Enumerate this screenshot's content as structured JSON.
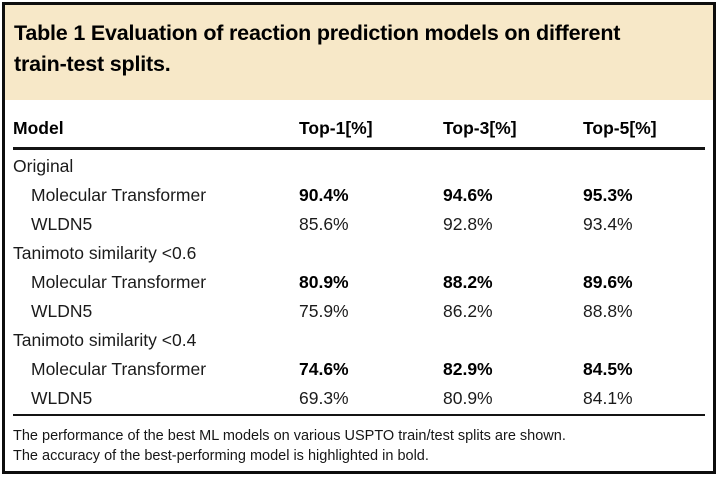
{
  "table": {
    "title_lines": [
      "Table 1 Evaluation of reaction prediction models on different",
      "train-test splits."
    ],
    "columns": [
      "Model",
      "Top-1[%]",
      "Top-3[%]",
      "Top-5[%]"
    ],
    "groups": [
      {
        "label": "Original",
        "rows": [
          {
            "model": "Molecular Transformer",
            "top1": "90.4%",
            "top3": "94.6%",
            "top5": "95.3%",
            "bold": true
          },
          {
            "model": "WLDN5",
            "top1": "85.6%",
            "top3": "92.8%",
            "top5": "93.4%",
            "bold": false
          }
        ]
      },
      {
        "label": "Tanimoto similarity <0.6",
        "rows": [
          {
            "model": "Molecular Transformer",
            "top1": "80.9%",
            "top3": "88.2%",
            "top5": "89.6%",
            "bold": true
          },
          {
            "model": "WLDN5",
            "top1": "75.9%",
            "top3": "86.2%",
            "top5": "88.8%",
            "bold": false
          }
        ]
      },
      {
        "label": "Tanimoto similarity <0.4",
        "rows": [
          {
            "model": "Molecular Transformer",
            "top1": "74.6%",
            "top3": "82.9%",
            "top5": "84.5%",
            "bold": true
          },
          {
            "model": "WLDN5",
            "top1": "69.3%",
            "top3": "80.9%",
            "top5": "84.1%",
            "bold": false
          }
        ]
      }
    ],
    "footnotes": [
      "The performance of the best ML models on various USPTO train/test splits are shown.",
      "The accuracy of the best-performing model is highlighted in bold."
    ],
    "colors": {
      "title_band_bg": "#f7e8c8",
      "border": "#0d0d0d",
      "text": "#1b1b1b"
    }
  },
  "chart_data": {
    "type": "table",
    "title": "Table 1 Evaluation of reaction prediction models on different train-test splits.",
    "columns": [
      "Model",
      "Top-1[%]",
      "Top-3[%]",
      "Top-5[%]"
    ],
    "rows": [
      [
        "Original",
        null,
        null,
        null
      ],
      [
        "Molecular Transformer",
        90.4,
        94.6,
        95.3
      ],
      [
        "WLDN5",
        85.6,
        92.8,
        93.4
      ],
      [
        "Tanimoto similarity <0.6",
        null,
        null,
        null
      ],
      [
        "Molecular Transformer",
        80.9,
        88.2,
        89.6
      ],
      [
        "WLDN5",
        75.9,
        86.2,
        88.8
      ],
      [
        "Tanimoto similarity <0.4",
        null,
        null,
        null
      ],
      [
        "Molecular Transformer",
        74.6,
        82.9,
        84.5
      ],
      [
        "WLDN5",
        69.3,
        80.9,
        84.1
      ]
    ],
    "notes": "Bold values mark the best-performing model (Molecular Transformer) in each split."
  }
}
